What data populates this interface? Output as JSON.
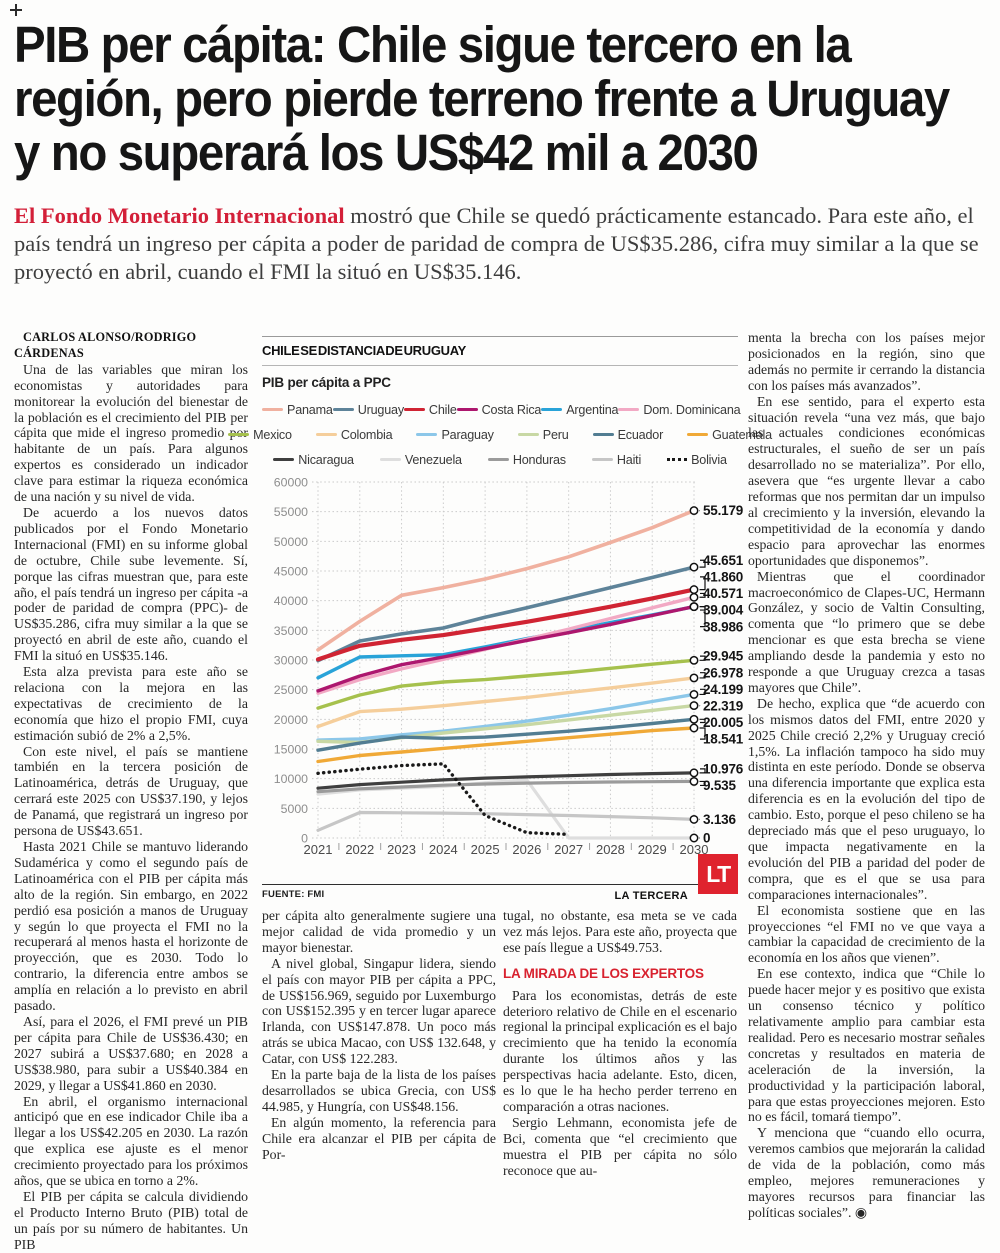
{
  "headline": {
    "line1": "PIB per cápita: Chile sigue tercero en la",
    "line2": "región, pero pierde terreno frente a Uruguay",
    "line3": "y no superará los US$42 mil a 2030"
  },
  "lede": {
    "highlight": "El Fondo Monetario Internacional",
    "rest": " mostró que Chile se quedó prácticamente estancado. Para este año, el país tendrá un ingreso per cápita a poder de paridad de compra de US$35.286, cifra muy similar a la que se proyectó en abril, cuando el FMI la situó en US$35.146."
  },
  "byline": "CARLOS ALONSO/RODRIGO CÁRDENAS",
  "columns": {
    "col1": [
      "Una de las variables que miran los economistas y autoridades para monitorear la evolución del bienestar de la población es el crecimiento del PIB per cápita que mide el ingreso promedio por habitante de un país. Para algunos expertos es considerado un indicador clave para estimar la riqueza económica de una nación y su nivel de vida.",
      "De acuerdo a los nuevos datos publicados por el Fondo Monetario Internacional (FMI) en su informe global de octubre, Chile sube levemente. Sí, porque las cifras muestran que, para este año, el país tendrá un ingreso per cápita -a poder de paridad de compra (PPC)- de US$35.286, cifra muy similar a la que se proyectó en abril de este año, cuando el FMI la situó en US$35.146.",
      "Esta alza prevista para este año se relaciona con la mejora en las expectativas de crecimiento de la economía que hizo el propio FMI, cuya estimación subió de 2% a 2,5%.",
      "Con este nivel, el país se mantiene también en la tercera posición de Latinoamérica, detrás de Uruguay, que cerrará este 2025 con US$37.190, y lejos de Panamá, que registrará un ingreso por persona de US$43.651.",
      "Hasta 2021 Chile se mantuvo liderando Sudamérica y como el segundo país de Latinoamérica con el PIB per cápita más alto de la región. Sin embargo, en 2022 perdió esa posición a manos de Uruguay y según lo que proyecta el FMI no la recuperará al menos hasta el horizonte de proyección, que es 2030. Todo lo contrario, la diferencia entre ambos se amplía en relación a lo previsto en abril pasado.",
      "Así, para el 2026, el FMI prevé un PIB per cápita para Chile de US$36.430; en 2027 subirá a US$37.680; en 2028 a US$38.980, para subir a US$40.384 en 2029, y llegar a US$41.860 en 2030.",
      "En abril, el organismo internacional anticipó que en ese indicador Chile iba a llegar a los US$42.205 en 2030. La razón que explica ese ajuste es el menor crecimiento proyectado para los próximos años, que se ubica en torno a 2%.",
      "El PIB per cápita se calcula dividiendo el Producto Interno Bruto (PIB) total de un país por su número de habitantes. Un PIB"
    ],
    "col2": [
      "per cápita alto generalmente sugiere una mejor calidad de vida promedio y un mayor bienestar.",
      "A nivel global, Singapur lidera, siendo el país con mayor PIB per cápita a PPC, de US$156.969, seguido por Luxemburgo con US$152.395 y en tercer lugar aparece Irlanda, con US$147.878. Un poco más atrás se ubica Macao, con US$ 132.648, y Catar, con US$ 122.283.",
      "En la parte baja de la lista de los países desarrollados se ubica Grecia, con US$ 44.985, y Hungría, con US$48.156.",
      "En algún momento, la referencia para Chile era alcanzar el PIB per cápita de Por-"
    ],
    "col3_pre": [
      "tugal, no obstante, esa meta se ve cada vez más lejos. Para este año, proyecta que ese país llegue a US$49.753."
    ],
    "col3_subhead": "LA MIRADA DE LOS EXPERTOS",
    "col3_post": [
      "Para los economistas, detrás de este deterioro relativo de Chile en el escenario regional la principal explicación es el bajo crecimiento que ha tenido la economía durante los últimos años y las perspectivas hacia adelante. Esto, dicen, es lo que le ha hecho perder terreno en comparación a otras naciones.",
      "Sergio Lehmann, economista jefe de Bci, comenta que “el crecimiento que muestra el PIB per cápita no sólo reconoce que au-"
    ],
    "col4": [
      "menta la brecha con los países mejor posicionados en la región, sino que además no permite ir cerrando la distancia con los países más avanzados”.",
      "En ese sentido, para el experto esta situación revela “una vez más, que bajo las actuales condiciones económicas estructurales, el sueño de ser un país desarrollado no se materializa”. Por ello, asevera que “es urgente llevar a cabo reformas que nos permitan dar un impulso al crecimiento y la inversión, elevando la competitividad de la economía y dando espacio para aprovechar las enormes oportunidades que disponemos”.",
      "Mientras que el coordinador macroeconómico de Clapes-UC, Hermann González, y socio de Valtin Consulting, comenta que “lo primero que se debe mencionar es que esta brecha se viene ampliando desde la pandemia y esto no responde a que Uruguay crezca a tasas mayores que Chile”.",
      "De hecho, explica que “de acuerdo con los mismos datos del FMI, entre 2020 y 2025 Chile creció 2,2% y Uruguay creció 1,5%. La inflación tampoco ha sido muy distinta en este período. Donde se observa una diferencia importante que explica esta diferencia es en la evolución del tipo de cambio. Esto, porque el peso chileno se ha depreciado más que el peso uruguayo, lo que impacta negativamente en la evolución del PIB a paridad del poder de compra, que es el que se usa para comparaciones internacionales”.",
      "El economista sostiene que en las proyecciones “el FMI no ve que vaya a cambiar la capacidad de crecimiento de la economía en los años que vienen”.",
      "En ese contexto, indica que “Chile lo puede hacer mejor y es positivo que exista un consenso técnico y político relativamente amplio para cambiar esta realidad. Pero es necesario mostrar señales concretas y resultados en materia de aceleración de la inversión, la productividad y la participación laboral, para que estas proyecciones mejoren. Esto no es fácil, tomará tiempo”.",
      "Y menciona que “cuando ello ocurra, veremos cambios que mejorarán la calidad de vida de la población, como más empleo, mejores remuneraciones y mayores recursos para financiar las políticas sociales”. ◉"
    ]
  },
  "chart": {
    "kicker": "CHILE SE DISTANCIA DE URUGUAY",
    "title": "PIB per cápita a PPC",
    "source": "FUENTE: FMI",
    "credit": "LA TERCERA",
    "logo": "LT",
    "accent_red": "#df232e"
  },
  "chart_data": {
    "type": "line",
    "title": "PIB per cápita a PPC",
    "x": [
      2021,
      2022,
      2023,
      2024,
      2025,
      2026,
      2027,
      2028,
      2029,
      2030
    ],
    "ylim": [
      0,
      60000
    ],
    "ytick_step": 5000,
    "grid": true,
    "legend_position": "top",
    "series": [
      {
        "name": "Panama",
        "color": "#f0b1a0",
        "width": 3.6,
        "z": 0,
        "end_label": "55.179",
        "values": [
          31700,
          36500,
          40900,
          42200,
          43651,
          45400,
          47400,
          49800,
          52300,
          55179
        ]
      },
      {
        "name": "Uruguay",
        "color": "#5e8399",
        "width": 3.6,
        "z": 1,
        "end_label": "45.651",
        "values": [
          29900,
          33200,
          34400,
          35400,
          37190,
          38800,
          40500,
          42200,
          43900,
          45651
        ]
      },
      {
        "name": "Chile",
        "color": "#d02433",
        "width": 4.2,
        "z": 10,
        "end_label": "41.860",
        "values": [
          30100,
          32400,
          33400,
          34200,
          35286,
          36430,
          37680,
          38980,
          40384,
          41860
        ]
      },
      {
        "name": "Costa Rica",
        "color": "#ad176e",
        "width": 3.4,
        "z": 6,
        "end_label": "39.004",
        "values": [
          24800,
          27300,
          29200,
          30500,
          31900,
          33300,
          34600,
          36000,
          37500,
          39004
        ]
      },
      {
        "name": "Argentina",
        "color": "#29a3d8",
        "width": 3.4,
        "z": 4,
        "end_label": "38.986",
        "values": [
          27000,
          30500,
          30700,
          30900,
          32200,
          33600,
          34900,
          36300,
          37600,
          38986
        ]
      },
      {
        "name": "Dom. Dominicana",
        "color": "#f2a9c4",
        "width": 3.4,
        "z": 5,
        "end_label": "40.571",
        "values": [
          24400,
          26700,
          28500,
          30100,
          31800,
          33500,
          35200,
          37000,
          38800,
          40571
        ]
      },
      {
        "name": "Mexico",
        "color": "#a6c14d",
        "width": 3.4,
        "z": 11,
        "end_label": "29.945",
        "values": [
          21900,
          24100,
          25600,
          26300,
          26700,
          27300,
          27900,
          28600,
          29300,
          29945
        ]
      },
      {
        "name": "Colombia",
        "color": "#f5ce9b",
        "width": 3.4,
        "z": 12,
        "end_label": "26.978",
        "values": [
          18800,
          21300,
          21700,
          22300,
          23000,
          23700,
          24500,
          25300,
          26100,
          26978
        ]
      },
      {
        "name": "Paraguay",
        "color": "#8cc7e9",
        "width": 3.4,
        "z": 13,
        "end_label": "24.199",
        "values": [
          16500,
          16700,
          17400,
          18000,
          18800,
          19700,
          20700,
          21800,
          23000,
          24199
        ]
      },
      {
        "name": "Peru",
        "color": "#c8d8a4",
        "width": 3.4,
        "z": 14,
        "end_label": "22.319",
        "values": [
          16300,
          16100,
          16900,
          17700,
          18400,
          19100,
          19900,
          20700,
          21500,
          22319
        ]
      },
      {
        "name": "Ecuador",
        "color": "#527d92",
        "width": 3.4,
        "z": 15,
        "end_label": "20.005",
        "values": [
          14800,
          16000,
          17000,
          16800,
          17000,
          17500,
          18000,
          18600,
          19300,
          20005
        ]
      },
      {
        "name": "Guatemala",
        "color": "#f0a937",
        "width": 3.4,
        "z": 16,
        "end_label": "18.541",
        "values": [
          12900,
          13900,
          14500,
          15100,
          15700,
          16300,
          16900,
          17500,
          18100,
          18541
        ]
      },
      {
        "name": "Nicaragua",
        "color": "#3f3f3f",
        "width": 3.2,
        "z": 17,
        "end_label": "10.976",
        "values": [
          8400,
          9000,
          9400,
          9800,
          10100,
          10300,
          10500,
          10700,
          10850,
          10976
        ]
      },
      {
        "name": "Venezuela",
        "color": "#dedede",
        "width": 3.2,
        "z": 7,
        "end_label": "0",
        "values": [
          7400,
          8100,
          8400,
          8700,
          9300,
          9800,
          0,
          0,
          0,
          0
        ]
      },
      {
        "name": "Honduras",
        "color": "#9b9b9b",
        "width": 3.2,
        "z": 9,
        "end_label": "9.535",
        "values": [
          7800,
          8300,
          8600,
          8900,
          9100,
          9250,
          9350,
          9430,
          9490,
          9535
        ]
      },
      {
        "name": "Haiti",
        "color": "#c6c6c6",
        "width": 3.2,
        "z": 8,
        "end_label": "3.136",
        "values": [
          1300,
          4300,
          4250,
          4200,
          4100,
          3950,
          3800,
          3600,
          3400,
          3136
        ]
      },
      {
        "name": "Bolivia",
        "color": "#1a1a1a",
        "width": 3.4,
        "z": 18,
        "dashed": true,
        "end_label": null,
        "values": [
          10900,
          11600,
          12200,
          12500,
          3800,
          900,
          600,
          null,
          null,
          null
        ]
      }
    ]
  }
}
